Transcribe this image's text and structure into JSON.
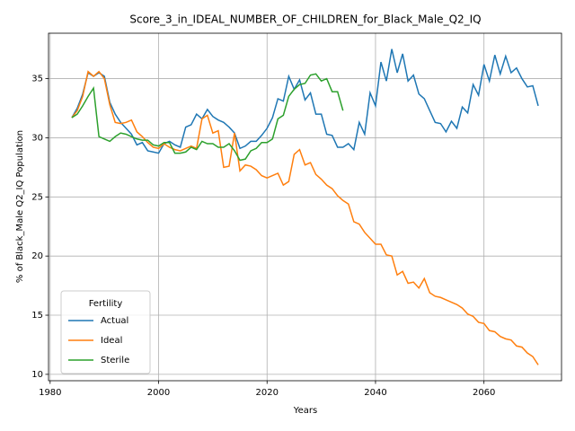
{
  "chart_data": {
    "type": "line",
    "title": "Score_3_in_IDEAL_NUMBER_OF_CHILDREN_for_Black_Male_Q2_IQ",
    "x_label": "Years",
    "y_label": "% of Black_Male Q2_IQ Population",
    "legend_title": "Fertility",
    "legend_position": "lower left",
    "grid": true,
    "xlim": [
      1979.7,
      2074.3
    ],
    "xticks": [
      1980,
      2000,
      2020,
      2040,
      2060
    ],
    "ylim": [
      9.46,
      38.84
    ],
    "yticks": [
      10,
      15,
      20,
      25,
      30,
      35
    ],
    "x": [
      1984,
      1985,
      1986,
      1987,
      1988,
      1989,
      1990,
      1991,
      1992,
      1993,
      1994,
      1995,
      1996,
      1997,
      1998,
      1999,
      2000,
      2001,
      2002,
      2003,
      2004,
      2005,
      2006,
      2007,
      2008,
      2009,
      2010,
      2011,
      2012,
      2013,
      2014,
      2015,
      2016,
      2017,
      2018,
      2019,
      2020,
      2021,
      2022,
      2023,
      2024,
      2025,
      2026,
      2027,
      2028,
      2029,
      2030,
      2031,
      2032,
      2033,
      2034,
      2035,
      2036,
      2037,
      2038,
      2039,
      2040,
      2041,
      2042,
      2043,
      2044,
      2045,
      2046,
      2047,
      2048,
      2049,
      2050,
      2051,
      2052,
      2053,
      2054,
      2055,
      2056,
      2057,
      2058,
      2059,
      2060,
      2061,
      2062,
      2063,
      2064,
      2065,
      2066,
      2067,
      2068,
      2069,
      2070
    ],
    "series": [
      {
        "name": "Actual",
        "color": "#1f77b4",
        "values": [
          31.7,
          32.5,
          33.7,
          35.5,
          35.2,
          35.5,
          35.2,
          33.0,
          32.0,
          31.3,
          30.8,
          30.3,
          29.4,
          29.6,
          28.9,
          28.8,
          28.7,
          29.5,
          29.7,
          29.4,
          29.2,
          30.9,
          31.1,
          32.0,
          31.6,
          32.4,
          31.8,
          31.5,
          31.3,
          30.9,
          30.4,
          29.1,
          29.3,
          29.7,
          29.7,
          30.2,
          30.8,
          31.7,
          33.3,
          33.1,
          35.2,
          34.1,
          34.9,
          33.2,
          33.8,
          32.0,
          32.0,
          30.3,
          30.2,
          29.2,
          29.2,
          29.5,
          29.0,
          31.3,
          30.3,
          33.8,
          32.7,
          36.4,
          34.8,
          37.5,
          35.5,
          37.1,
          34.8,
          35.3,
          33.7,
          33.3,
          32.3,
          31.3,
          31.2,
          30.5,
          31.4,
          30.8,
          32.6,
          32.1,
          34.5,
          33.6,
          36.2,
          34.8,
          37.0,
          35.4,
          36.9,
          35.5,
          35.9,
          35.0,
          34.3,
          34.4,
          32.7
        ]
      },
      {
        "name": "Ideal",
        "color": "#ff7f0e",
        "values": [
          31.7,
          32.3,
          33.5,
          35.6,
          35.2,
          35.6,
          35.0,
          32.8,
          31.3,
          31.2,
          31.3,
          31.5,
          30.5,
          30.1,
          29.6,
          29.2,
          29.1,
          29.5,
          29.2,
          29.0,
          28.9,
          29.1,
          29.3,
          29.1,
          31.6,
          31.9,
          30.4,
          30.6,
          27.5,
          27.6,
          30.4,
          27.2,
          27.7,
          27.6,
          27.3,
          26.8,
          26.6,
          26.8,
          27.0,
          26.0,
          26.3,
          28.6,
          29.0,
          27.7,
          27.9,
          26.9,
          26.5,
          26.0,
          25.7,
          25.1,
          24.7,
          24.4,
          22.9,
          22.7,
          22.0,
          21.5,
          21.0,
          21.0,
          20.1,
          20.0,
          18.4,
          18.7,
          17.7,
          17.8,
          17.3,
          18.1,
          16.9,
          16.6,
          16.5,
          16.3,
          16.1,
          15.9,
          15.6,
          15.1,
          14.9,
          14.4,
          14.3,
          13.7,
          13.6,
          13.2,
          13.0,
          12.9,
          12.4,
          12.3,
          11.8,
          11.5,
          10.8
        ]
      },
      {
        "name": "Sterile",
        "color": "#2ca02c",
        "values": [
          31.7,
          32.0,
          32.7,
          33.5,
          34.2,
          30.1,
          29.9,
          29.7,
          30.1,
          30.4,
          30.3,
          30.1,
          29.9,
          29.8,
          29.8,
          29.4,
          29.3,
          29.6,
          29.6,
          28.7,
          28.7,
          28.8,
          29.2,
          29.0,
          29.7,
          29.5,
          29.5,
          29.2,
          29.2,
          29.5,
          28.9,
          28.1,
          28.2,
          28.9,
          29.1,
          29.6,
          29.6,
          29.9,
          31.6,
          31.9,
          33.5,
          34.1,
          34.5,
          34.6,
          35.3,
          35.4,
          34.8,
          35.0,
          33.9,
          33.9,
          32.3,
          null,
          null,
          null,
          null,
          null,
          null,
          null,
          null,
          null,
          null,
          null,
          null,
          null,
          null,
          null,
          null,
          null,
          null,
          null,
          null,
          null,
          null,
          null,
          null,
          null,
          null,
          null,
          null,
          null,
          null,
          null,
          null,
          null,
          null,
          null,
          null
        ]
      }
    ]
  }
}
